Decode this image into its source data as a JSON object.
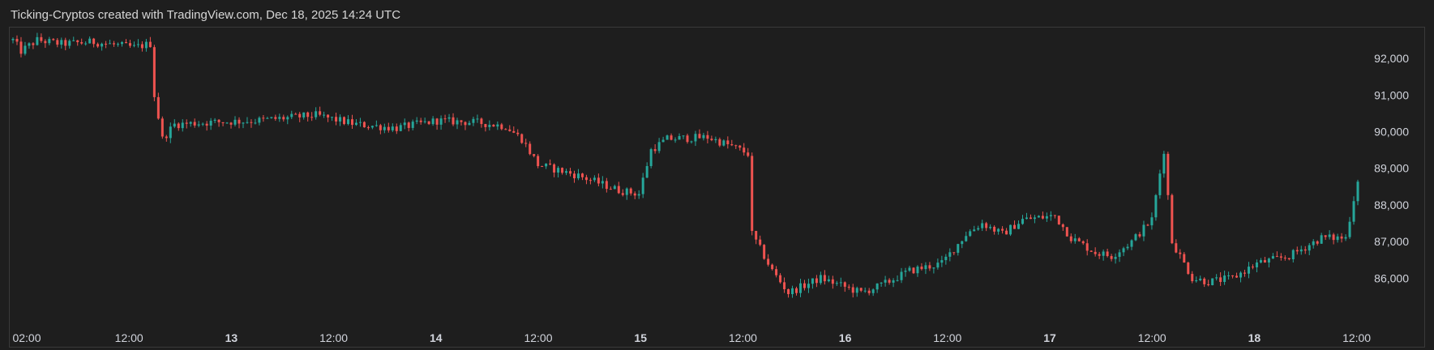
{
  "header": {
    "title": "Ticking-Cryptos created with TradingView.com, Dec 18, 2025 14:24 UTC"
  },
  "colors": {
    "background": "#1e1e1e",
    "up": "#26a69a",
    "down": "#ef5350",
    "axis_text": "#d1d4dc",
    "frame": "#3a3a3a"
  },
  "chart_data": {
    "type": "candlestick",
    "title": "Ticking-Cryptos created with TradingView.com, Dec 18, 2025 14:24 UTC",
    "grid": false,
    "x_ticks": [
      {
        "label": "02:00",
        "bold": false
      },
      {
        "label": "12:00",
        "bold": false
      },
      {
        "label": "13",
        "bold": true
      },
      {
        "label": "12:00",
        "bold": false
      },
      {
        "label": "14",
        "bold": true
      },
      {
        "label": "12:00",
        "bold": false
      },
      {
        "label": "15",
        "bold": true
      },
      {
        "label": "12:00",
        "bold": false
      },
      {
        "label": "16",
        "bold": true
      },
      {
        "label": "12:00",
        "bold": false
      },
      {
        "label": "17",
        "bold": true
      },
      {
        "label": "12:00",
        "bold": false
      },
      {
        "label": "18",
        "bold": true
      },
      {
        "label": "12:00",
        "bold": false
      }
    ],
    "y_ticks": [
      {
        "value": 86000,
        "label": "86,000"
      },
      {
        "value": 87000,
        "label": "87,000"
      },
      {
        "value": 88000,
        "label": "88,000"
      },
      {
        "value": 89000,
        "label": "89,000"
      },
      {
        "value": 90000,
        "label": "90,000"
      },
      {
        "value": 91000,
        "label": "91,000"
      },
      {
        "value": 92000,
        "label": "92,000"
      }
    ],
    "ylim": [
      84700,
      92800
    ],
    "price_path_approx": [
      [
        0,
        92500
      ],
      [
        2,
        92200
      ],
      [
        6,
        92500
      ],
      [
        12,
        92400
      ],
      [
        20,
        92450
      ],
      [
        30,
        92300
      ],
      [
        34,
        92400
      ],
      [
        35,
        91000
      ],
      [
        37,
        89800
      ],
      [
        40,
        90200
      ],
      [
        48,
        90250
      ],
      [
        60,
        90300
      ],
      [
        75,
        90450
      ],
      [
        85,
        90200
      ],
      [
        95,
        90100
      ],
      [
        105,
        90300
      ],
      [
        115,
        90250
      ],
      [
        122,
        90150
      ],
      [
        126,
        89800
      ],
      [
        130,
        89100
      ],
      [
        140,
        88800
      ],
      [
        150,
        88400
      ],
      [
        155,
        88300
      ],
      [
        158,
        89500
      ],
      [
        162,
        89800
      ],
      [
        172,
        89850
      ],
      [
        178,
        89600
      ],
      [
        182,
        89400
      ],
      [
        183,
        87200
      ],
      [
        188,
        86200
      ],
      [
        192,
        85600
      ],
      [
        200,
        86000
      ],
      [
        210,
        85600
      ],
      [
        215,
        85800
      ],
      [
        222,
        86200
      ],
      [
        230,
        86400
      ],
      [
        236,
        87200
      ],
      [
        240,
        87500
      ],
      [
        245,
        87200
      ],
      [
        250,
        87600
      ],
      [
        258,
        87700
      ],
      [
        262,
        87100
      ],
      [
        268,
        86700
      ],
      [
        272,
        86600
      ],
      [
        277,
        87000
      ],
      [
        282,
        87600
      ],
      [
        285,
        89500
      ],
      [
        287,
        87000
      ],
      [
        292,
        86000
      ],
      [
        296,
        85900
      ],
      [
        302,
        86000
      ],
      [
        308,
        86400
      ],
      [
        316,
        86600
      ],
      [
        324,
        87100
      ],
      [
        330,
        87100
      ],
      [
        333,
        88700
      ]
    ]
  }
}
